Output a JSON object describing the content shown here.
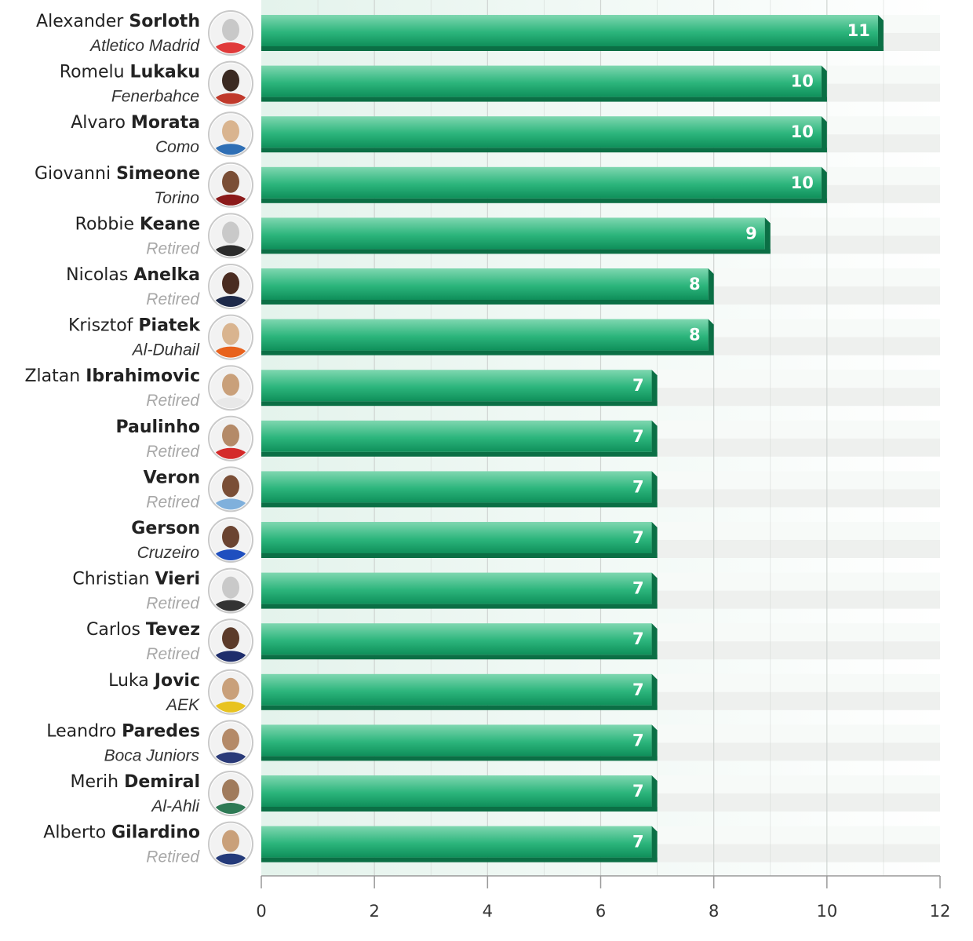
{
  "chart_data": {
    "type": "bar",
    "orientation": "horizontal",
    "xlim": [
      0,
      12
    ],
    "xticks": [
      0,
      2,
      4,
      6,
      8,
      10,
      12
    ],
    "grid": true,
    "players": [
      {
        "first": "Alexander",
        "last": "Sorloth",
        "club": "Atletico Madrid",
        "value": 11
      },
      {
        "first": "Romelu",
        "last": "Lukaku",
        "club": "Fenerbahce",
        "value": 10
      },
      {
        "first": "Alvaro",
        "last": "Morata",
        "club": "Como",
        "value": 10
      },
      {
        "first": "Giovanni",
        "last": "Simeone",
        "club": "Torino",
        "value": 10
      },
      {
        "first": "Robbie",
        "last": "Keane",
        "club": "Retired",
        "value": 9
      },
      {
        "first": "Nicolas",
        "last": "Anelka",
        "club": "Retired",
        "value": 8
      },
      {
        "first": "Krisztof",
        "last": "Piatek",
        "club": "Al-Duhail",
        "value": 8
      },
      {
        "first": "Zlatan",
        "last": "Ibrahimovic",
        "club": "Retired",
        "value": 7
      },
      {
        "first": "",
        "last": "Paulinho",
        "club": "Retired",
        "value": 7
      },
      {
        "first": "",
        "last": "Veron",
        "club": "Retired",
        "value": 7
      },
      {
        "first": "",
        "last": "Gerson",
        "club": "Cruzeiro",
        "value": 7
      },
      {
        "first": "Christian",
        "last": "Vieri",
        "club": "Retired",
        "value": 7
      },
      {
        "first": "Carlos",
        "last": "Tevez",
        "club": "Retired",
        "value": 7
      },
      {
        "first": "Luka",
        "last": "Jovic",
        "club": "AEK",
        "value": 7
      },
      {
        "first": "Leandro",
        "last": "Paredes",
        "club": "Boca Juniors",
        "value": 7
      },
      {
        "first": "Merih",
        "last": "Demiral",
        "club": "Al-Ahli",
        "value": 7
      },
      {
        "first": "Alberto",
        "last": "Gilardino",
        "club": "Retired",
        "value": 7
      }
    ]
  },
  "colors": {
    "bar_top": "#7fd7b0",
    "bar_mid": "#2cb57c",
    "bar_bottom": "#0f8f5a",
    "bar_shadow": "#0b6f45",
    "track_light": "#f7faf8",
    "track_dark": "#eef0ee",
    "plot_bg": "#e4f3ec",
    "grid": "#cfd4d1",
    "axis": "#999999"
  },
  "avatar_kits": [
    [
      "#c8c8c8",
      "#e03a3a"
    ],
    [
      "#3b2a22",
      "#c0392b"
    ],
    [
      "#d9b48f",
      "#2f6fb5"
    ],
    [
      "#7a4e36",
      "#8b1a1a"
    ],
    [
      "#c9c9c9",
      "#2c2c2c"
    ],
    [
      "#4a2c21",
      "#1e2a4a"
    ],
    [
      "#d9b48f",
      "#e8621d"
    ],
    [
      "#c9a07a",
      "#e8e8e8"
    ],
    [
      "#b48a68",
      "#d42a2a"
    ],
    [
      "#7a4e36",
      "#7fb0dc"
    ],
    [
      "#6b4431",
      "#1f4fbf"
    ],
    [
      "#c9c9c9",
      "#333333"
    ],
    [
      "#5c3b2a",
      "#1e2d6b"
    ],
    [
      "#c9a07a",
      "#e8c320"
    ],
    [
      "#b48a68",
      "#2a3a78"
    ],
    [
      "#a07b5c",
      "#2e7a55"
    ],
    [
      "#c9a07a",
      "#243a7a"
    ]
  ]
}
